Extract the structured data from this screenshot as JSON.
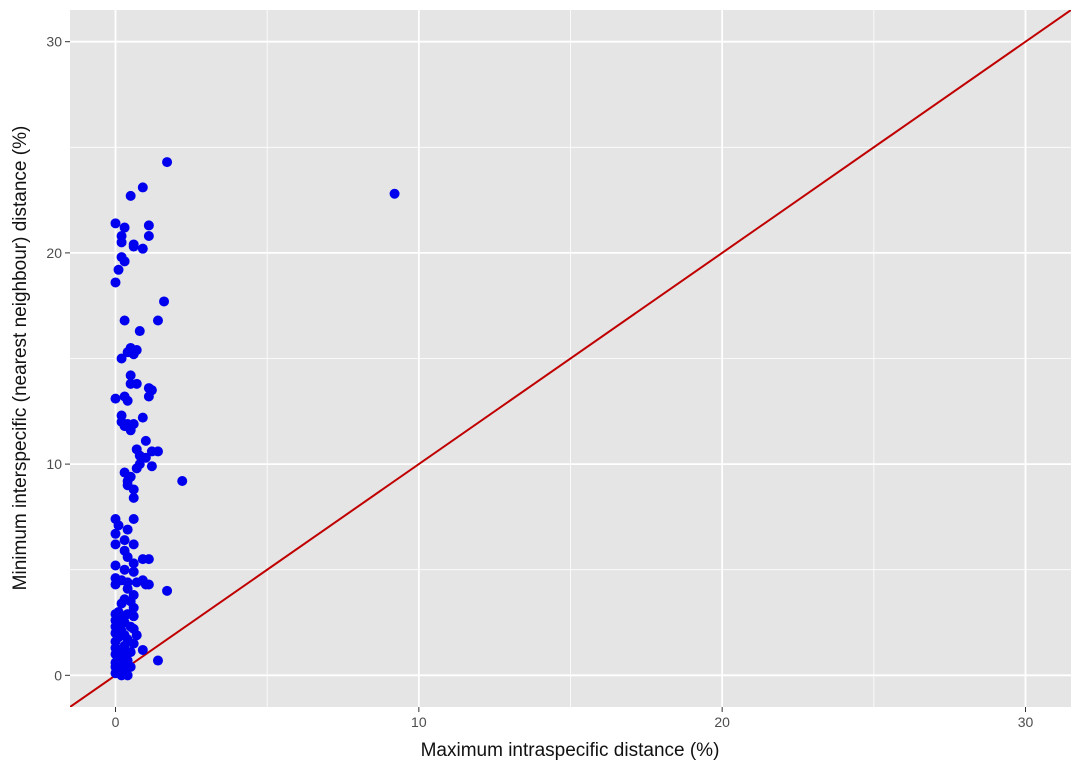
{
  "chart_data": {
    "type": "scatter",
    "title": "",
    "xlabel": "Maximum intraspecific distance (%)",
    "ylabel": "Minimum interspecific (nearest neighbour) distance (%)",
    "xlim": [
      -1.5,
      31.5
    ],
    "ylim": [
      -1.5,
      31.5
    ],
    "x_ticks": [
      0,
      10,
      20,
      30
    ],
    "y_ticks": [
      0,
      10,
      20,
      30
    ],
    "x_minor_ticks": [
      5,
      15,
      25
    ],
    "y_minor_ticks": [
      5,
      15,
      25
    ],
    "grid": true,
    "background_color": "#e5e5e5",
    "grid_color": "#ffffff",
    "point_color": "#0000ee",
    "reference_line": {
      "slope": 1,
      "intercept": 0,
      "color": "#c00000"
    },
    "points": [
      [
        1.7,
        24.3
      ],
      [
        9.2,
        22.8
      ],
      [
        0.5,
        22.7
      ],
      [
        0.9,
        23.1
      ],
      [
        0.0,
        21.4
      ],
      [
        0.3,
        21.2
      ],
      [
        1.1,
        21.3
      ],
      [
        0.2,
        20.8
      ],
      [
        1.1,
        20.8
      ],
      [
        0.2,
        20.5
      ],
      [
        0.6,
        20.4
      ],
      [
        0.9,
        20.2
      ],
      [
        0.6,
        20.3
      ],
      [
        0.2,
        19.8
      ],
      [
        0.3,
        19.6
      ],
      [
        0.1,
        19.2
      ],
      [
        0.0,
        18.6
      ],
      [
        1.6,
        17.7
      ],
      [
        1.4,
        16.8
      ],
      [
        0.3,
        16.8
      ],
      [
        0.8,
        16.3
      ],
      [
        0.5,
        15.5
      ],
      [
        0.7,
        15.4
      ],
      [
        0.4,
        15.3
      ],
      [
        0.2,
        15.0
      ],
      [
        0.6,
        15.2
      ],
      [
        0.5,
        14.2
      ],
      [
        0.5,
        13.8
      ],
      [
        0.7,
        13.8
      ],
      [
        1.1,
        13.6
      ],
      [
        1.2,
        13.5
      ],
      [
        0.0,
        13.1
      ],
      [
        0.3,
        13.2
      ],
      [
        0.4,
        13.0
      ],
      [
        1.1,
        13.2
      ],
      [
        0.2,
        12.3
      ],
      [
        0.9,
        12.2
      ],
      [
        0.2,
        12.0
      ],
      [
        0.4,
        11.9
      ],
      [
        0.6,
        11.9
      ],
      [
        0.3,
        11.8
      ],
      [
        0.5,
        11.6
      ],
      [
        1.0,
        11.1
      ],
      [
        0.7,
        10.7
      ],
      [
        1.2,
        10.6
      ],
      [
        1.4,
        10.6
      ],
      [
        0.8,
        10.4
      ],
      [
        1.0,
        10.3
      ],
      [
        0.8,
        10.0
      ],
      [
        1.2,
        9.9
      ],
      [
        0.7,
        9.8
      ],
      [
        0.3,
        9.6
      ],
      [
        0.5,
        9.4
      ],
      [
        0.4,
        9.2
      ],
      [
        2.2,
        9.2
      ],
      [
        0.4,
        9.0
      ],
      [
        0.6,
        8.8
      ],
      [
        0.6,
        8.4
      ],
      [
        0.6,
        7.4
      ],
      [
        0.0,
        7.4
      ],
      [
        0.1,
        7.1
      ],
      [
        0.4,
        6.9
      ],
      [
        0.0,
        6.7
      ],
      [
        0.3,
        6.4
      ],
      [
        0.6,
        6.2
      ],
      [
        0.0,
        6.2
      ],
      [
        0.3,
        5.9
      ],
      [
        0.9,
        5.5
      ],
      [
        1.1,
        5.5
      ],
      [
        0.4,
        5.6
      ],
      [
        0.6,
        5.3
      ],
      [
        0.0,
        5.2
      ],
      [
        0.3,
        5.0
      ],
      [
        0.6,
        4.9
      ],
      [
        0.0,
        4.6
      ],
      [
        0.2,
        4.5
      ],
      [
        0.4,
        4.4
      ],
      [
        0.9,
        4.5
      ],
      [
        0.7,
        4.4
      ],
      [
        1.0,
        4.3
      ],
      [
        1.1,
        4.3
      ],
      [
        0.0,
        4.3
      ],
      [
        0.4,
        4.1
      ],
      [
        1.7,
        4.0
      ],
      [
        0.6,
        3.8
      ],
      [
        0.3,
        3.6
      ],
      [
        0.5,
        3.5
      ],
      [
        0.2,
        3.4
      ],
      [
        0.6,
        3.2
      ],
      [
        0.1,
        3.0
      ],
      [
        0.4,
        2.9
      ],
      [
        0.0,
        2.9
      ],
      [
        0.3,
        2.8
      ],
      [
        0.6,
        2.8
      ],
      [
        0.2,
        2.7
      ],
      [
        0.0,
        2.6
      ],
      [
        0.3,
        2.5
      ],
      [
        0.1,
        2.4
      ],
      [
        0.0,
        2.3
      ],
      [
        0.5,
        2.3
      ],
      [
        0.6,
        2.2
      ],
      [
        0.2,
        2.1
      ],
      [
        0.0,
        2.0
      ],
      [
        0.3,
        1.9
      ],
      [
        0.7,
        1.9
      ],
      [
        0.1,
        1.8
      ],
      [
        0.4,
        1.7
      ],
      [
        0.0,
        1.6
      ],
      [
        0.6,
        1.5
      ],
      [
        0.3,
        1.4
      ],
      [
        0.0,
        1.3
      ],
      [
        0.9,
        1.2
      ],
      [
        0.2,
        1.2
      ],
      [
        0.5,
        1.1
      ],
      [
        0.0,
        1.0
      ],
      [
        0.3,
        0.9
      ],
      [
        0.1,
        0.8
      ],
      [
        0.0,
        0.6
      ],
      [
        0.4,
        0.7
      ],
      [
        1.4,
        0.7
      ],
      [
        0.2,
        0.5
      ],
      [
        0.0,
        0.4
      ],
      [
        0.5,
        0.4
      ],
      [
        0.3,
        0.3
      ],
      [
        0.1,
        0.2
      ],
      [
        0.0,
        0.1
      ],
      [
        0.2,
        0.0
      ],
      [
        0.4,
        0.0
      ]
    ]
  }
}
